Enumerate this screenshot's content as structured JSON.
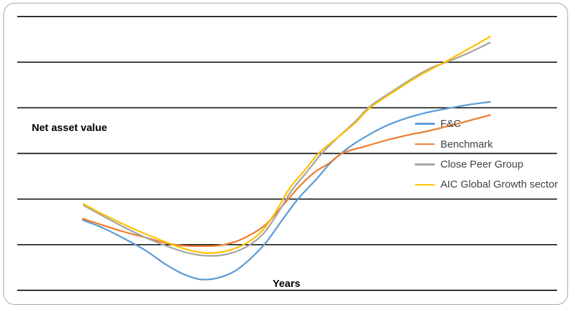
{
  "frame": {
    "border_color": "#a9a9a9",
    "background": "#ffffff"
  },
  "chart": {
    "y_axis_label": "Net asset value",
    "x_axis_label": "Years"
  },
  "legend": {
    "items": [
      {
        "label": "F&C",
        "color": "#5B9BD5"
      },
      {
        "label": "Benchmark",
        "color": "#ED7D31"
      },
      {
        "label": "Close Peer Group",
        "color": "#A5A5A5"
      },
      {
        "label": "AIC Global Growth sector",
        "color": "#FFC000"
      }
    ]
  },
  "chart_data": {
    "type": "line",
    "title": "",
    "xlabel": "Years",
    "ylabel": "Net asset value",
    "x_range": [
      0,
      10
    ],
    "y_range": [
      0,
      6
    ],
    "grid": "horizontal",
    "gridline_values": [
      0,
      1,
      2,
      3,
      4,
      5,
      6
    ],
    "gridline_color": "#111111",
    "legend_position": "right-middle",
    "axis_tick_labels": "none (qualitative axes, values in gridline units)",
    "series": [
      {
        "name": "F&C",
        "color": "#5B9BD5",
        "x": [
          0,
          0.51,
          1.02,
          1.53,
          2.03,
          2.46,
          2.88,
          3.31,
          3.73,
          4.1,
          4.49,
          4.92,
          5.29,
          5.73,
          6.1,
          6.53,
          6.95,
          7.46,
          7.97,
          8.47,
          8.98,
          9.49,
          10
        ],
        "y": [
          1.54,
          1.36,
          1.13,
          0.88,
          0.57,
          0.36,
          0.24,
          0.27,
          0.42,
          0.68,
          1.04,
          1.57,
          2.01,
          2.43,
          2.81,
          3.13,
          3.37,
          3.61,
          3.78,
          3.9,
          3.99,
          4.07,
          4.13
        ]
      },
      {
        "name": "Benchmark",
        "color": "#ED7D31",
        "x": [
          0,
          0.51,
          1.02,
          1.53,
          2.03,
          2.46,
          2.88,
          3.31,
          3.73,
          4.1,
          4.49,
          4.92,
          5.29,
          5.68,
          6.02,
          6.39,
          6.95,
          7.46,
          7.97,
          8.47,
          8.98,
          9.49,
          10
        ],
        "y": [
          1.57,
          1.42,
          1.28,
          1.16,
          1.04,
          0.98,
          0.97,
          0.98,
          1.06,
          1.21,
          1.44,
          1.87,
          2.25,
          2.58,
          2.77,
          3.01,
          3.16,
          3.29,
          3.4,
          3.49,
          3.6,
          3.72,
          3.84
        ]
      },
      {
        "name": "Close Peer Group",
        "color": "#A5A5A5",
        "x": [
          0.02,
          0.51,
          1.02,
          1.53,
          2.03,
          2.46,
          2.88,
          3.31,
          3.69,
          4.07,
          4.44,
          4.78,
          5.12,
          5.46,
          5.85,
          6.31,
          6.69,
          7.05,
          7.63,
          8.14,
          8.56,
          8.93,
          9.49,
          10
        ],
        "y": [
          1.86,
          1.62,
          1.38,
          1.16,
          0.98,
          0.85,
          0.77,
          0.76,
          0.83,
          0.98,
          1.25,
          1.68,
          2.18,
          2.55,
          2.98,
          3.39,
          3.7,
          4.03,
          4.38,
          4.67,
          4.88,
          5.0,
          5.21,
          5.43
        ]
      },
      {
        "name": "AIC Global Growth sector",
        "color": "#FFC000",
        "x": [
          0.02,
          0.51,
          1.02,
          1.53,
          2.03,
          2.46,
          2.88,
          3.25,
          3.64,
          4.03,
          4.41,
          4.75,
          5.08,
          5.42,
          5.8,
          6.27,
          6.69,
          7.05,
          7.63,
          8.14,
          8.56,
          8.93,
          9.49,
          10
        ],
        "y": [
          1.89,
          1.66,
          1.44,
          1.24,
          1.06,
          0.92,
          0.83,
          0.82,
          0.89,
          1.04,
          1.31,
          1.74,
          2.24,
          2.6,
          3.01,
          3.36,
          3.67,
          4.0,
          4.35,
          4.64,
          4.85,
          5.02,
          5.3,
          5.56
        ]
      }
    ]
  }
}
